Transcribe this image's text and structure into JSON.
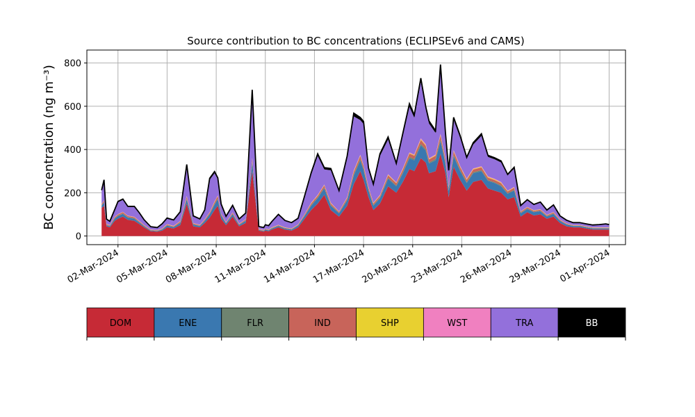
{
  "chart_data": {
    "type": "area",
    "stacked": true,
    "title": "Source contribution to BC concentrations (ECLIPSEv6 and CAMS)",
    "ylabel": "BC concentration (ng m⁻³)",
    "xlabel": "",
    "ylim": [
      -40,
      860
    ],
    "yticks": [
      0,
      200,
      400,
      600,
      800
    ],
    "grid": true,
    "x_range_days": [
      -0.9,
      32.0
    ],
    "xticks": [
      {
        "day": 1,
        "label": "02-Mar-2024"
      },
      {
        "day": 4,
        "label": "05-Mar-2024"
      },
      {
        "day": 7,
        "label": "08-Mar-2024"
      },
      {
        "day": 10,
        "label": "11-Mar-2024"
      },
      {
        "day": 13,
        "label": "14-Mar-2024"
      },
      {
        "day": 16,
        "label": "17-Mar-2024"
      },
      {
        "day": 19,
        "label": "20-Mar-2024"
      },
      {
        "day": 22,
        "label": "23-Mar-2024"
      },
      {
        "day": 25,
        "label": "26-Mar-2024"
      },
      {
        "day": 28,
        "label": "29-Mar-2024"
      },
      {
        "day": 31,
        "label": "01-Apr-2024"
      }
    ],
    "x": [
      0.0,
      0.15,
      0.3,
      0.5,
      0.8,
      1.0,
      1.3,
      1.6,
      2.0,
      2.3,
      2.6,
      3.0,
      3.4,
      3.7,
      4.0,
      4.4,
      4.8,
      5.2,
      5.6,
      6.0,
      6.3,
      6.6,
      6.9,
      7.1,
      7.3,
      7.6,
      8.0,
      8.4,
      8.8,
      9.2,
      9.6,
      9.9,
      10.0,
      10.2,
      10.4,
      10.8,
      11.2,
      11.6,
      12.0,
      12.4,
      12.8,
      13.2,
      13.6,
      14.0,
      14.5,
      15.0,
      15.4,
      15.8,
      16.0,
      16.3,
      16.6,
      17.0,
      17.5,
      18.0,
      18.4,
      18.8,
      19.1,
      19.5,
      19.8,
      20.0,
      20.4,
      20.7,
      21.0,
      21.2,
      21.5,
      21.9,
      22.3,
      22.7,
      23.2,
      23.6,
      24.0,
      24.4,
      24.8,
      25.2,
      25.6,
      26.0,
      26.4,
      26.8,
      27.2,
      27.6,
      28.0,
      28.4,
      28.8,
      29.2,
      29.6,
      30.0,
      30.4,
      30.8,
      31.0
    ],
    "series": [
      {
        "name": "DOM",
        "color": "#c62a36",
        "values": [
          130,
          140,
          45,
          40,
          70,
          80,
          90,
          75,
          70,
          55,
          40,
          22,
          20,
          25,
          40,
          35,
          50,
          150,
          45,
          40,
          60,
          85,
          120,
          140,
          80,
          50,
          90,
          45,
          60,
          300,
          25,
          20,
          25,
          22,
          30,
          40,
          30,
          25,
          40,
          80,
          120,
          150,
          190,
          120,
          90,
          140,
          240,
          300,
          260,
          180,
          120,
          150,
          230,
          200,
          250,
          310,
          300,
          360,
          340,
          290,
          300,
          380,
          290,
          180,
          320,
          260,
          210,
          250,
          260,
          220,
          210,
          200,
          170,
          180,
          90,
          110,
          95,
          100,
          80,
          90,
          60,
          45,
          40,
          40,
          35,
          30,
          30,
          30,
          30
        ]
      },
      {
        "name": "ENE",
        "color": "#3a78b0",
        "values": [
          10,
          15,
          5,
          5,
          10,
          12,
          12,
          10,
          10,
          8,
          5,
          3,
          3,
          5,
          8,
          6,
          10,
          20,
          8,
          6,
          10,
          15,
          25,
          30,
          15,
          8,
          10,
          6,
          10,
          40,
          3,
          3,
          5,
          4,
          5,
          6,
          5,
          5,
          8,
          12,
          20,
          25,
          30,
          20,
          15,
          25,
          40,
          50,
          45,
          30,
          20,
          25,
          35,
          30,
          40,
          50,
          50,
          60,
          55,
          45,
          50,
          60,
          45,
          30,
          50,
          40,
          35,
          40,
          40,
          35,
          35,
          30,
          25,
          30,
          15,
          15,
          15,
          15,
          10,
          12,
          10,
          8,
          6,
          6,
          5,
          5,
          5,
          5,
          5
        ]
      },
      {
        "name": "FLR",
        "color": "#6f8470",
        "values": [
          2,
          2,
          1,
          1,
          2,
          2,
          2,
          2,
          2,
          1,
          1,
          1,
          1,
          1,
          1,
          1,
          2,
          3,
          1,
          1,
          2,
          2,
          3,
          4,
          2,
          1,
          2,
          1,
          2,
          5,
          1,
          1,
          1,
          1,
          1,
          1,
          1,
          1,
          1,
          2,
          3,
          3,
          4,
          3,
          2,
          3,
          5,
          6,
          5,
          4,
          3,
          3,
          4,
          4,
          5,
          6,
          6,
          7,
          6,
          5,
          6,
          7,
          5,
          4,
          6,
          5,
          4,
          5,
          5,
          4,
          4,
          4,
          3,
          4,
          2,
          2,
          2,
          2,
          2,
          2,
          1,
          1,
          1,
          1,
          1,
          1,
          1,
          1,
          1
        ]
      },
      {
        "name": "IND",
        "color": "#c8645a",
        "values": [
          5,
          6,
          3,
          3,
          5,
          5,
          6,
          5,
          5,
          4,
          3,
          2,
          2,
          2,
          4,
          3,
          5,
          8,
          4,
          3,
          4,
          6,
          8,
          10,
          5,
          3,
          5,
          3,
          4,
          12,
          2,
          2,
          2,
          2,
          2,
          3,
          2,
          2,
          3,
          5,
          7,
          8,
          10,
          7,
          5,
          8,
          12,
          14,
          12,
          9,
          7,
          8,
          11,
          10,
          12,
          15,
          15,
          17,
          16,
          14,
          15,
          18,
          14,
          10,
          15,
          13,
          11,
          12,
          12,
          11,
          10,
          10,
          8,
          9,
          5,
          6,
          5,
          5,
          4,
          5,
          3,
          3,
          2,
          2,
          2,
          2,
          2,
          2,
          2
        ]
      },
      {
        "name": "SHP",
        "color": "#e8d030",
        "values": [
          1,
          1,
          1,
          1,
          1,
          1,
          1,
          1,
          1,
          1,
          1,
          1,
          1,
          1,
          1,
          1,
          1,
          2,
          1,
          1,
          1,
          1,
          2,
          2,
          1,
          1,
          1,
          1,
          1,
          2,
          1,
          1,
          1,
          1,
          1,
          1,
          1,
          1,
          1,
          1,
          2,
          2,
          2,
          2,
          1,
          2,
          3,
          3,
          3,
          2,
          2,
          2,
          3,
          2,
          3,
          3,
          3,
          4,
          4,
          3,
          3,
          4,
          3,
          2,
          3,
          3,
          3,
          3,
          3,
          3,
          3,
          3,
          2,
          2,
          1,
          1,
          1,
          1,
          1,
          1,
          1,
          1,
          1,
          1,
          1,
          1,
          1,
          1,
          1
        ]
      },
      {
        "name": "WST",
        "color": "#f080c0",
        "values": [
          1,
          1,
          1,
          1,
          1,
          1,
          1,
          1,
          1,
          1,
          1,
          1,
          1,
          1,
          1,
          1,
          1,
          2,
          1,
          1,
          1,
          1,
          2,
          2,
          1,
          1,
          1,
          1,
          1,
          2,
          1,
          1,
          1,
          1,
          1,
          1,
          1,
          1,
          1,
          1,
          2,
          2,
          2,
          2,
          1,
          2,
          3,
          3,
          3,
          2,
          2,
          2,
          3,
          2,
          3,
          3,
          3,
          4,
          4,
          3,
          3,
          4,
          3,
          2,
          3,
          3,
          3,
          3,
          3,
          3,
          3,
          3,
          2,
          2,
          1,
          1,
          1,
          1,
          1,
          1,
          1,
          1,
          1,
          1,
          1,
          1,
          1,
          1,
          1
        ]
      },
      {
        "name": "TRA",
        "color": "#9370db",
        "values": [
          60,
          90,
          20,
          15,
          30,
          55,
          55,
          40,
          45,
          35,
          22,
          12,
          10,
          20,
          25,
          25,
          40,
          140,
          30,
          25,
          40,
          150,
          130,
          75,
          40,
          25,
          30,
          20,
          25,
          300,
          10,
          10,
          15,
          15,
          25,
          45,
          30,
          25,
          25,
          80,
          130,
          180,
          70,
          150,
          90,
          180,
          250,
          160,
          190,
          80,
          80,
          180,
          160,
          80,
          150,
          210,
          170,
          260,
          160,
          160,
          100,
          300,
          110,
          70,
          140,
          130,
          90,
          110,
          140,
          90,
          90,
          90,
          70,
          85,
          25,
          30,
          25,
          30,
          20,
          30,
          15,
          12,
          10,
          10,
          10,
          10,
          12,
          15,
          12
        ]
      },
      {
        "name": "BB",
        "color": "#000000",
        "values": [
          3,
          5,
          2,
          2,
          3,
          4,
          4,
          3,
          3,
          3,
          2,
          1,
          1,
          2,
          3,
          2,
          3,
          6,
          3,
          2,
          3,
          7,
          8,
          6,
          4,
          2,
          3,
          2,
          3,
          15,
          1,
          1,
          2,
          2,
          2,
          3,
          2,
          2,
          3,
          5,
          8,
          10,
          8,
          8,
          6,
          10,
          15,
          12,
          12,
          8,
          6,
          10,
          12,
          8,
          12,
          15,
          13,
          18,
          13,
          12,
          10,
          20,
          10,
          6,
          12,
          10,
          8,
          9,
          10,
          7,
          7,
          7,
          5,
          6,
          2,
          3,
          2,
          3,
          2,
          3,
          2,
          2,
          1,
          1,
          1,
          1,
          1,
          1,
          1
        ]
      }
    ]
  },
  "legend": {
    "items": [
      {
        "label": "DOM",
        "color": "#c62a36",
        "text_color": "#000000"
      },
      {
        "label": "ENE",
        "color": "#3a78b0",
        "text_color": "#000000"
      },
      {
        "label": "FLR",
        "color": "#6f8470",
        "text_color": "#000000"
      },
      {
        "label": "IND",
        "color": "#c8645a",
        "text_color": "#000000"
      },
      {
        "label": "SHP",
        "color": "#e8d030",
        "text_color": "#000000"
      },
      {
        "label": "WST",
        "color": "#f080c0",
        "text_color": "#000000"
      },
      {
        "label": "TRA",
        "color": "#9370db",
        "text_color": "#000000"
      },
      {
        "label": "BB",
        "color": "#000000",
        "text_color": "#ffffff"
      }
    ]
  }
}
